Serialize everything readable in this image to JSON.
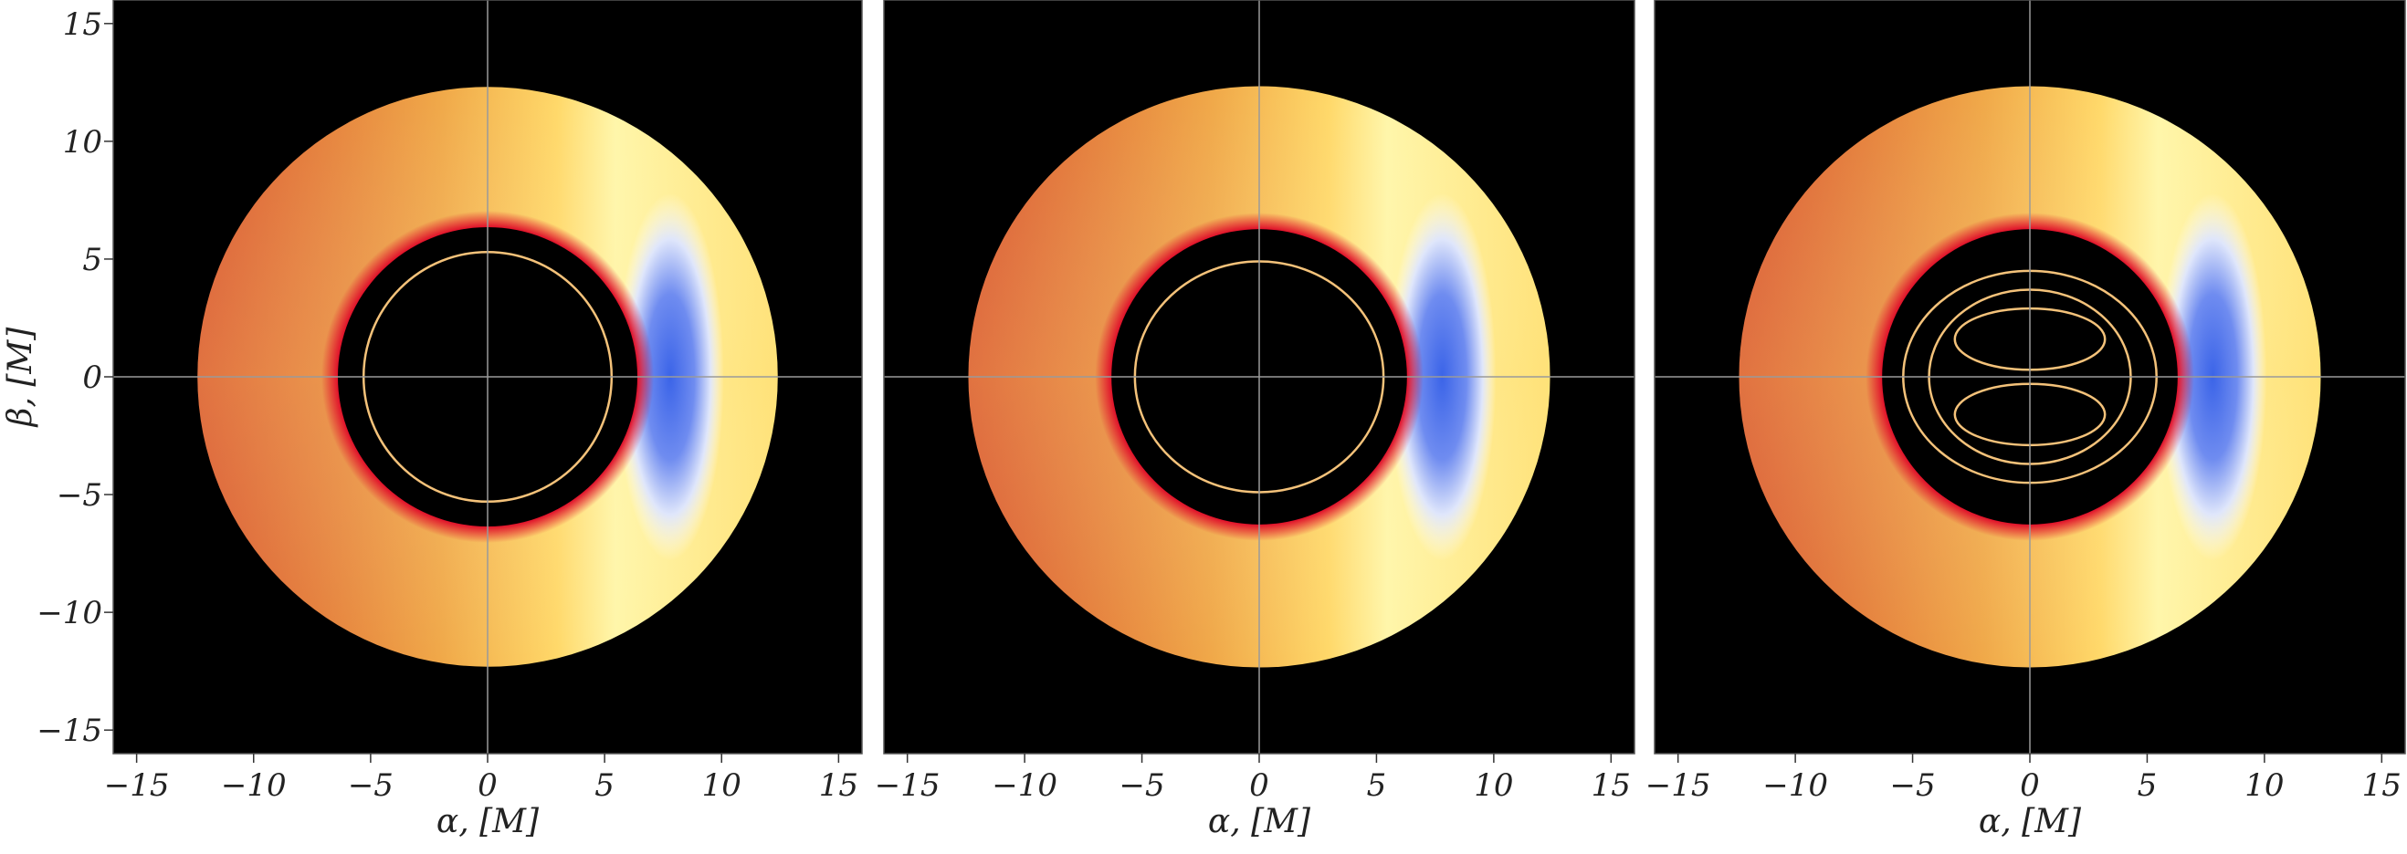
{
  "chart_data": [
    {
      "type": "image",
      "panel": "left",
      "xlabel": "α, [M]",
      "ylabel": "β, [M]",
      "xlim": [
        -16,
        16
      ],
      "ylim": [
        -16,
        16
      ],
      "xticks": [
        -15,
        -10,
        -5,
        0,
        5,
        10,
        15
      ],
      "yticks": [
        -15,
        -10,
        -5,
        0,
        5,
        10,
        15
      ],
      "background": "#000000",
      "disk": {
        "inner_radius": 6.4,
        "outer_radius": 12.4,
        "blueshift_center_x": 7.8
      },
      "secondary_rings": [
        {
          "radius_x": 5.3,
          "radius_y": 5.3,
          "offset_y": 0
        }
      ]
    },
    {
      "type": "image",
      "panel": "middle",
      "xlabel": "α, [M]",
      "xlim": [
        -16,
        16
      ],
      "ylim": [
        -16,
        16
      ],
      "xticks": [
        -15,
        -10,
        -5,
        0,
        5,
        10,
        15
      ],
      "background": "#000000",
      "disk": {
        "inner_radius": 6.3,
        "outer_radius": 12.4,
        "blueshift_center_x": 7.8
      },
      "secondary_rings": [
        {
          "radius_x": 5.3,
          "radius_y": 4.9,
          "offset_y": 0
        }
      ]
    },
    {
      "type": "image",
      "panel": "right",
      "xlabel": "α, [M]",
      "xlim": [
        -16,
        16
      ],
      "ylim": [
        -16,
        16
      ],
      "xticks": [
        -15,
        -10,
        -5,
        0,
        5,
        10,
        15
      ],
      "background": "#000000",
      "disk": {
        "inner_radius": 6.3,
        "outer_radius": 12.4,
        "blueshift_center_x": 7.8
      },
      "secondary_rings": [
        {
          "radius_x": 5.4,
          "radius_y": 4.5,
          "offset_y": 0
        },
        {
          "radius_x": 4.3,
          "radius_y": 3.7,
          "offset_y": 0
        },
        {
          "radius_x": 3.2,
          "radius_y": 1.3,
          "offset_y": 1.6
        },
        {
          "radius_x": 3.2,
          "radius_y": 1.3,
          "offset_y": -1.6
        }
      ]
    }
  ],
  "colors": {
    "disk_stops": [
      "#d9542a",
      "#f0a848",
      "#ffffff",
      "#3b64e8"
    ],
    "inner_edge": "#e0102a",
    "ring": "#f4c27a",
    "axis_line": "#9a9a9a"
  }
}
